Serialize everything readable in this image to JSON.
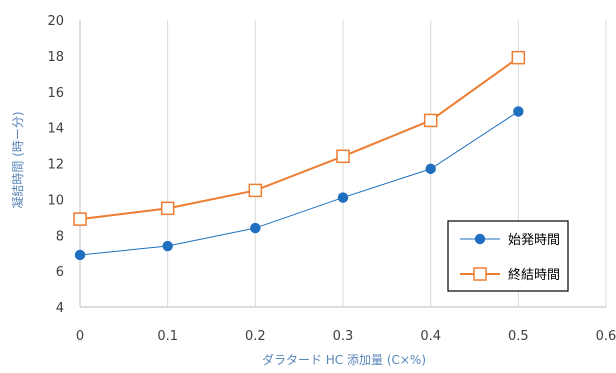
{
  "chart_data": {
    "type": "line",
    "title": "",
    "xlabel": "ダラタード HC 添加量 (C×%)",
    "ylabel": "凝結時間 (時ー分)",
    "xlim": [
      0,
      0.6
    ],
    "ylim": [
      4,
      20
    ],
    "x_ticks": [
      "0",
      "0.1",
      "0.2",
      "0.3",
      "0.4",
      "0.5",
      "0.6"
    ],
    "y_ticks": [
      "4",
      "6",
      "8",
      "10",
      "12",
      "14",
      "16",
      "18",
      "20"
    ],
    "grid": "vertical",
    "legend_position": "lower-right",
    "x": [
      0,
      0.1,
      0.2,
      0.3,
      0.4,
      0.5
    ],
    "series": [
      {
        "name": "始発時間",
        "values": [
          6.9,
          7.4,
          8.4,
          10.1,
          11.7,
          14.9
        ],
        "color": "#1f6fc0",
        "marker": "filled-circle",
        "line_width": 1
      },
      {
        "name": "終結時間",
        "values": [
          8.9,
          9.5,
          10.5,
          12.4,
          14.4,
          17.9
        ],
        "color": "#ed7d31",
        "marker": "open-square",
        "line_width": 2
      }
    ]
  }
}
